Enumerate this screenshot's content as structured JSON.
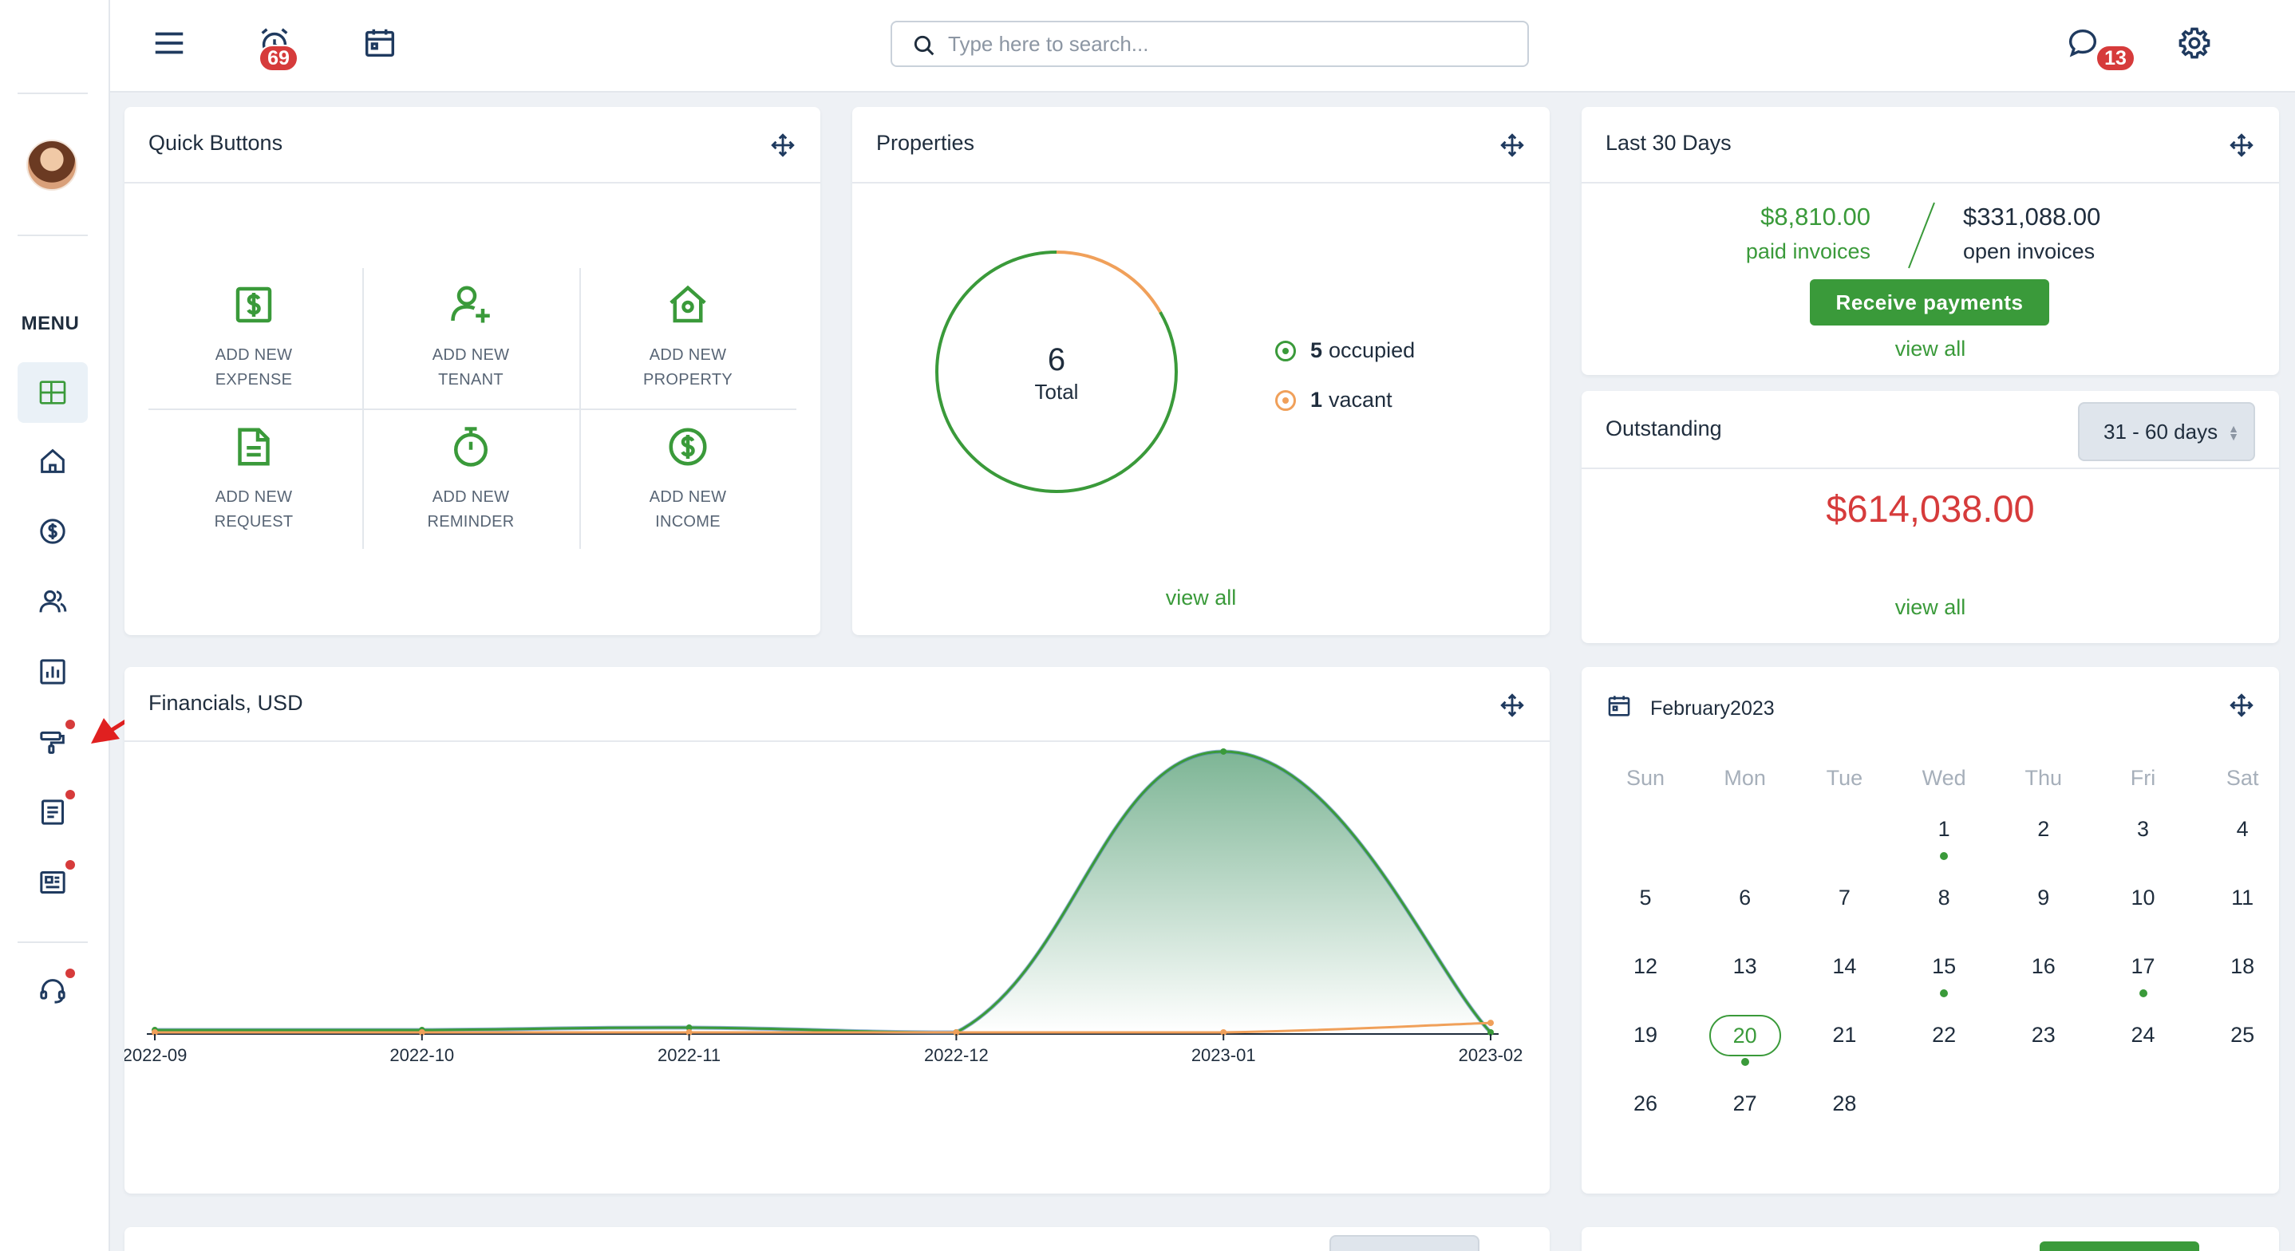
{
  "topbar": {
    "menu_icon": "hamburger-icon",
    "reminders_badge": "69",
    "search_placeholder": "Type here to search...",
    "messages_badge": "13"
  },
  "sidebar": {
    "menu_label": "MENU",
    "items": [
      {
        "icon": "dashboard-icon",
        "active": true
      },
      {
        "icon": "home-icon"
      },
      {
        "icon": "dollar-icon"
      },
      {
        "icon": "people-icon"
      },
      {
        "icon": "chart-icon"
      },
      {
        "icon": "paint-roller-icon",
        "notification": true
      },
      {
        "icon": "document-icon",
        "notification": true
      },
      {
        "icon": "newspaper-icon",
        "notification": true
      },
      {
        "icon": "headset-icon",
        "notification": true
      }
    ]
  },
  "quick_buttons": {
    "title": "Quick Buttons",
    "buttons": [
      {
        "line1": "ADD NEW",
        "line2": "EXPENSE",
        "icon": "dollar-bill-icon"
      },
      {
        "line1": "ADD NEW",
        "line2": "TENANT",
        "icon": "add-user-icon"
      },
      {
        "line1": "ADD NEW",
        "line2": "PROPERTY",
        "icon": "house-icon"
      },
      {
        "line1": "ADD NEW",
        "line2": "REQUEST",
        "icon": "document-icon"
      },
      {
        "line1": "ADD NEW",
        "line2": "REMINDER",
        "icon": "stopwatch-icon"
      },
      {
        "line1": "ADD NEW",
        "line2": "INCOME",
        "icon": "dollar-circle-icon"
      }
    ]
  },
  "properties": {
    "title": "Properties",
    "total_value": "6",
    "total_label": "Total",
    "occupied_count": "5",
    "occupied_label": "occupied",
    "vacant_count": "1",
    "vacant_label": "vacant",
    "occupied": 5,
    "vacant": 1,
    "view_all": "view all"
  },
  "last30": {
    "title": "Last 30 Days",
    "paid_amount": "$8,810.00",
    "paid_label": "paid invoices",
    "open_amount": "$331,088.00",
    "open_label": "open invoices",
    "receive_button": "Receive payments",
    "view_all": "view all"
  },
  "outstanding": {
    "title": "Outstanding",
    "range": "31 - 60 days",
    "amount": "$614,038.00",
    "view_all": "view all"
  },
  "financials": {
    "title": "Financials, USD"
  },
  "chart_data": {
    "type": "area",
    "title": "Financials, USD",
    "categories": [
      "2022-09",
      "2022-10",
      "2022-11",
      "2022-12",
      "2023-01",
      "2023-02"
    ],
    "series": [
      {
        "color": "#3a9a3a",
        "values": [
          0.5,
          0.5,
          1,
          0,
          59,
          0
        ]
      },
      {
        "color": "#f0a05a",
        "values": [
          0,
          0,
          0,
          0,
          0,
          2
        ]
      }
    ],
    "ylim": [
      0,
      60
    ],
    "grid": false,
    "legend": "none"
  },
  "calendar": {
    "title": "February2023",
    "weekdays": [
      "Sun",
      "Mon",
      "Tue",
      "Wed",
      "Thu",
      "Fri",
      "Sat"
    ],
    "first_weekday": 3,
    "days_in_month": 28,
    "today": 20,
    "event_days": [
      1,
      15,
      17,
      20
    ]
  }
}
